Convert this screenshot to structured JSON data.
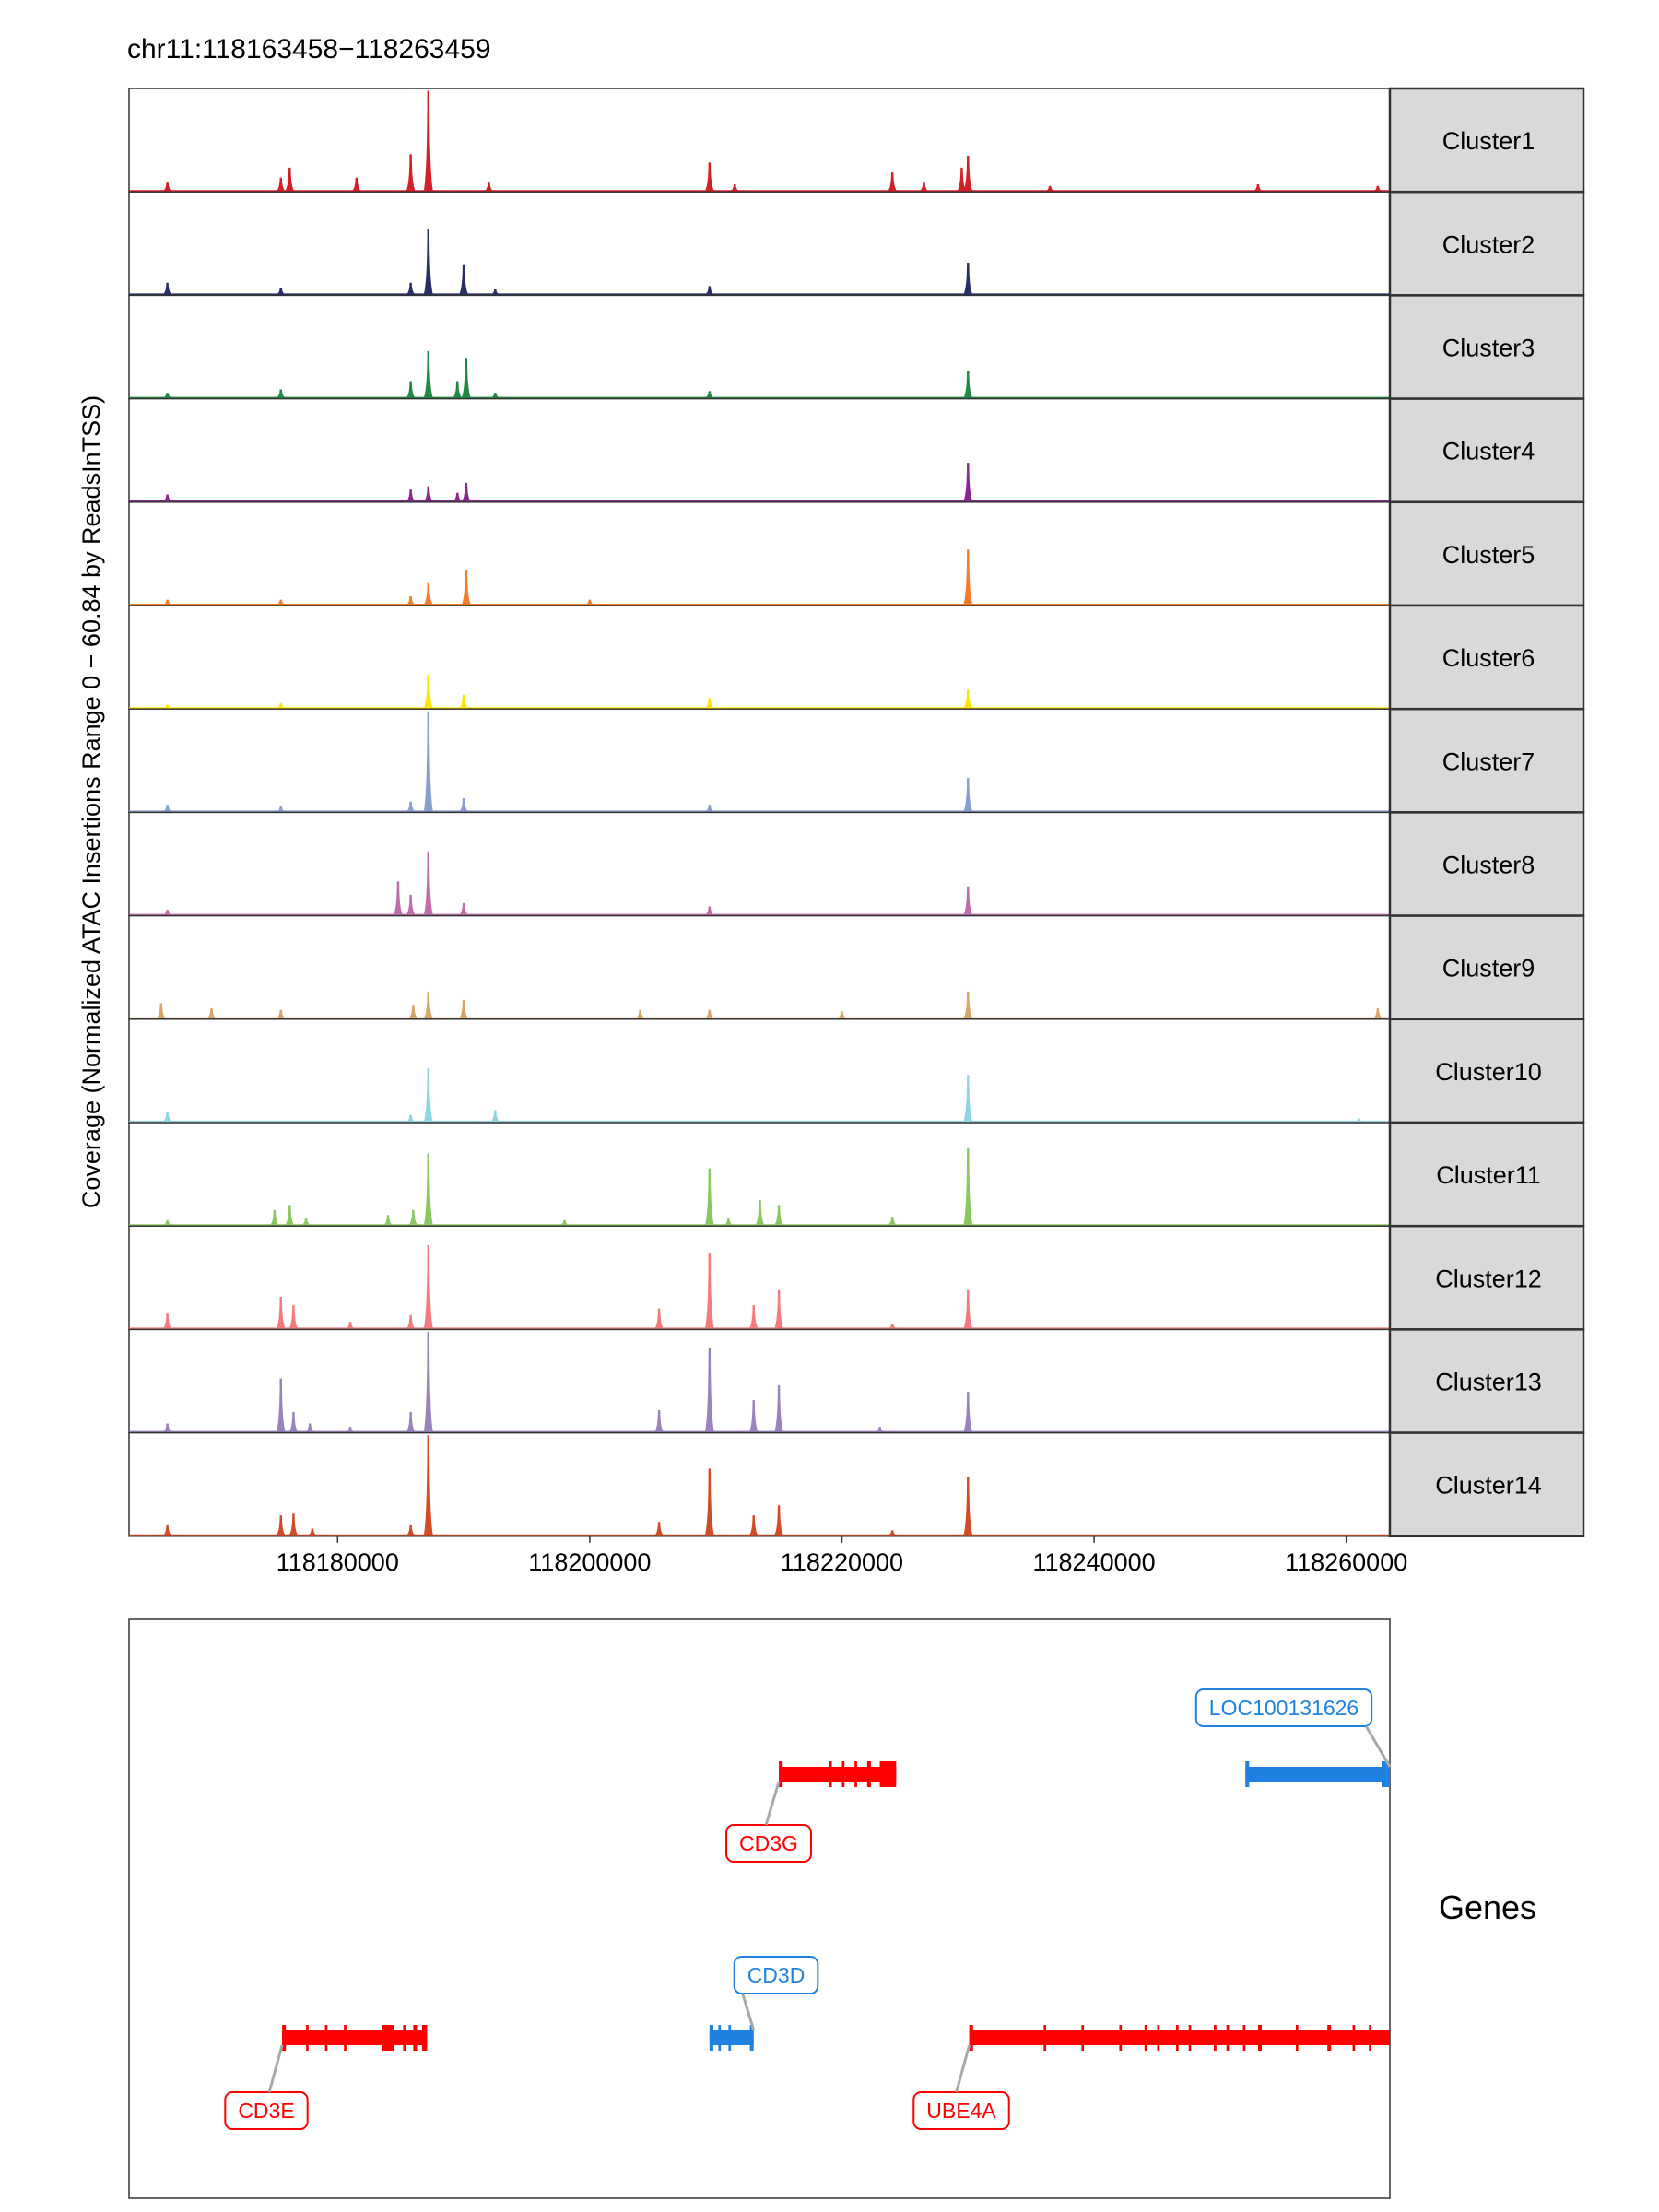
{
  "chart_data": {
    "type": "area",
    "title": "chr11:118163458−118263459",
    "ylabel": "Coverage (Normalized ATAC Insertions Range 0 − 60.84 by ReadsInTSS)",
    "xlabel": "",
    "xlim": [
      118163458,
      118263459
    ],
    "ylim": [
      0,
      60.84
    ],
    "grid": false,
    "x_ticks": [
      118180000,
      118200000,
      118220000,
      118240000,
      118260000
    ],
    "x_tick_labels": [
      "118180000",
      "118200000",
      "118220000",
      "118240000",
      "118260000"
    ],
    "series": [
      {
        "name": "Cluster1",
        "color": "#D51F26",
        "peaks": [
          [
            118166500,
            5
          ],
          [
            118175500,
            8
          ],
          [
            118176200,
            14
          ],
          [
            118181500,
            8
          ],
          [
            118185800,
            22
          ],
          [
            118187200,
            60
          ],
          [
            118192000,
            5
          ],
          [
            118209500,
            17
          ],
          [
            118211500,
            4
          ],
          [
            118224000,
            11
          ],
          [
            118226500,
            5
          ],
          [
            118229500,
            14
          ],
          [
            118230000,
            21
          ],
          [
            118236500,
            3
          ],
          [
            118253000,
            4
          ],
          [
            118262500,
            3
          ]
        ]
      },
      {
        "name": "Cluster2",
        "color": "#272E6A",
        "peaks": [
          [
            118166500,
            7
          ],
          [
            118175500,
            4
          ],
          [
            118185800,
            7
          ],
          [
            118187200,
            39
          ],
          [
            118190000,
            18
          ],
          [
            118192500,
            3
          ],
          [
            118209500,
            5
          ],
          [
            118230000,
            19
          ]
        ]
      },
      {
        "name": "Cluster3",
        "color": "#208A42",
        "peaks": [
          [
            118166500,
            3
          ],
          [
            118175500,
            5
          ],
          [
            118185800,
            10
          ],
          [
            118187200,
            28
          ],
          [
            118189500,
            10
          ],
          [
            118190200,
            24
          ],
          [
            118192500,
            3
          ],
          [
            118209500,
            4
          ],
          [
            118230000,
            16
          ]
        ]
      },
      {
        "name": "Cluster4",
        "color": "#89288F",
        "peaks": [
          [
            118166500,
            4
          ],
          [
            118185800,
            7
          ],
          [
            118187200,
            9
          ],
          [
            118189500,
            5
          ],
          [
            118190200,
            11
          ],
          [
            118230000,
            23
          ]
        ]
      },
      {
        "name": "Cluster5",
        "color": "#F47D2B",
        "peaks": [
          [
            118166500,
            3
          ],
          [
            118175500,
            3
          ],
          [
            118185800,
            5
          ],
          [
            118187200,
            13
          ],
          [
            118190200,
            21
          ],
          [
            118200000,
            3
          ],
          [
            118230000,
            33
          ]
        ]
      },
      {
        "name": "Cluster6",
        "color": "#FEE500",
        "peaks": [
          [
            118166500,
            2
          ],
          [
            118175500,
            3
          ],
          [
            118187200,
            20
          ],
          [
            118190000,
            8
          ],
          [
            118209500,
            6
          ],
          [
            118230000,
            11
          ]
        ]
      },
      {
        "name": "Cluster7",
        "color": "#8A9FD1",
        "peaks": [
          [
            118166500,
            4
          ],
          [
            118175500,
            3
          ],
          [
            118185800,
            6
          ],
          [
            118187200,
            60
          ],
          [
            118190000,
            8
          ],
          [
            118209500,
            4
          ],
          [
            118230000,
            20
          ]
        ]
      },
      {
        "name": "Cluster8",
        "color": "#C06CAB",
        "peaks": [
          [
            118166500,
            3
          ],
          [
            118184800,
            20
          ],
          [
            118185800,
            12
          ],
          [
            118187200,
            38
          ],
          [
            118190000,
            7
          ],
          [
            118209500,
            5
          ],
          [
            118230000,
            17
          ]
        ]
      },
      {
        "name": "Cluster9",
        "color": "#D8A767",
        "peaks": [
          [
            118166000,
            9
          ],
          [
            118170000,
            6
          ],
          [
            118175500,
            5
          ],
          [
            118186000,
            8
          ],
          [
            118187200,
            16
          ],
          [
            118190000,
            11
          ],
          [
            118204000,
            5
          ],
          [
            118209500,
            5
          ],
          [
            118220000,
            4
          ],
          [
            118230000,
            16
          ],
          [
            118262500,
            6
          ]
        ]
      },
      {
        "name": "Cluster10",
        "color": "#90D5E4",
        "peaks": [
          [
            118166500,
            6
          ],
          [
            118185800,
            4
          ],
          [
            118187200,
            32
          ],
          [
            118192500,
            7
          ],
          [
            118230000,
            28
          ],
          [
            118261000,
            2
          ]
        ]
      },
      {
        "name": "Cluster11",
        "color": "#89C75F",
        "peaks": [
          [
            118166500,
            3
          ],
          [
            118175000,
            9
          ],
          [
            118176200,
            12
          ],
          [
            118177500,
            4
          ],
          [
            118184000,
            6
          ],
          [
            118186000,
            9
          ],
          [
            118187200,
            43
          ],
          [
            118198000,
            3
          ],
          [
            118209500,
            34
          ],
          [
            118211000,
            4
          ],
          [
            118213500,
            15
          ],
          [
            118215000,
            12
          ],
          [
            118224000,
            5
          ],
          [
            118230000,
            46
          ]
        ]
      },
      {
        "name": "Cluster12",
        "color": "#F37B7D",
        "peaks": [
          [
            118166500,
            9
          ],
          [
            118175500,
            19
          ],
          [
            118176500,
            14
          ],
          [
            118181000,
            4
          ],
          [
            118185800,
            8
          ],
          [
            118187200,
            50
          ],
          [
            118205500,
            12
          ],
          [
            118209500,
            45
          ],
          [
            118213000,
            14
          ],
          [
            118215000,
            23
          ],
          [
            118224000,
            3
          ],
          [
            118230000,
            23
          ]
        ]
      },
      {
        "name": "Cluster13",
        "color": "#9983BD",
        "peaks": [
          [
            118166500,
            5
          ],
          [
            118175500,
            32
          ],
          [
            118176500,
            12
          ],
          [
            118177800,
            5
          ],
          [
            118181000,
            3
          ],
          [
            118185800,
            12
          ],
          [
            118187200,
            60
          ],
          [
            118205500,
            13
          ],
          [
            118209500,
            50
          ],
          [
            118213000,
            19
          ],
          [
            118215000,
            28
          ],
          [
            118223000,
            3
          ],
          [
            118230000,
            24
          ]
        ]
      },
      {
        "name": "Cluster14",
        "color": "#D24B27",
        "peaks": [
          [
            118166500,
            6
          ],
          [
            118175500,
            12
          ],
          [
            118176500,
            13
          ],
          [
            118178000,
            4
          ],
          [
            118185800,
            6
          ],
          [
            118187200,
            60
          ],
          [
            118205500,
            8
          ],
          [
            118209500,
            40
          ],
          [
            118213000,
            12
          ],
          [
            118215000,
            18
          ],
          [
            118224000,
            3
          ],
          [
            118230000,
            35
          ]
        ]
      }
    ]
  },
  "genes_panel": {
    "label": "Genes",
    "genes": [
      {
        "name": "LOC100131626",
        "strand": "minus",
        "color": "#1F82E0",
        "start": 118252000,
        "end": 118263459,
        "exons": [
          [
            118252000,
            118252300
          ],
          [
            118262800,
            118263459
          ]
        ]
      },
      {
        "name": "CD3G",
        "strand": "plus",
        "color": "#FF0000",
        "start": 118215000,
        "end": 118224300,
        "exons": [
          [
            118215000,
            118215300
          ],
          [
            118219000,
            118219200
          ],
          [
            118220000,
            118220200
          ],
          [
            118221000,
            118221200
          ],
          [
            118222000,
            118222300
          ],
          [
            118223000,
            118224300
          ]
        ]
      },
      {
        "name": "CD3D",
        "strand": "minus",
        "color": "#1F82E0",
        "start": 118209500,
        "end": 118213000,
        "exons": [
          [
            118209500,
            118209800
          ],
          [
            118210200,
            118210400
          ],
          [
            118211000,
            118211200
          ],
          [
            118212700,
            118213000
          ]
        ]
      },
      {
        "name": "CD3E",
        "strand": "plus",
        "color": "#FF0000",
        "start": 118175600,
        "end": 118187100,
        "exons": [
          [
            118175600,
            118175900
          ],
          [
            118177500,
            118177700
          ],
          [
            118179000,
            118179200
          ],
          [
            118180500,
            118180700
          ],
          [
            118183500,
            118184500
          ],
          [
            118185200,
            118185400
          ],
          [
            118186000,
            118186300
          ],
          [
            118186700,
            118187100
          ]
        ]
      },
      {
        "name": "UBE4A",
        "strand": "plus",
        "color": "#FF0000",
        "start": 118230100,
        "end": 118263459,
        "exons": [
          [
            118230100,
            118230400
          ],
          [
            118236000,
            118236200
          ],
          [
            118239000,
            118239200
          ],
          [
            118242000,
            118242200
          ],
          [
            118244000,
            118244200
          ],
          [
            118245000,
            118245200
          ],
          [
            118246500,
            118246700
          ],
          [
            118247500,
            118247700
          ],
          [
            118249500,
            118249700
          ],
          [
            118250500,
            118250700
          ],
          [
            118251800,
            118252000
          ],
          [
            118253000,
            118253300
          ],
          [
            118256000,
            118256200
          ],
          [
            118258500,
            118258800
          ],
          [
            118260500,
            118260700
          ],
          [
            118261800,
            118262000
          ]
        ]
      }
    ]
  }
}
